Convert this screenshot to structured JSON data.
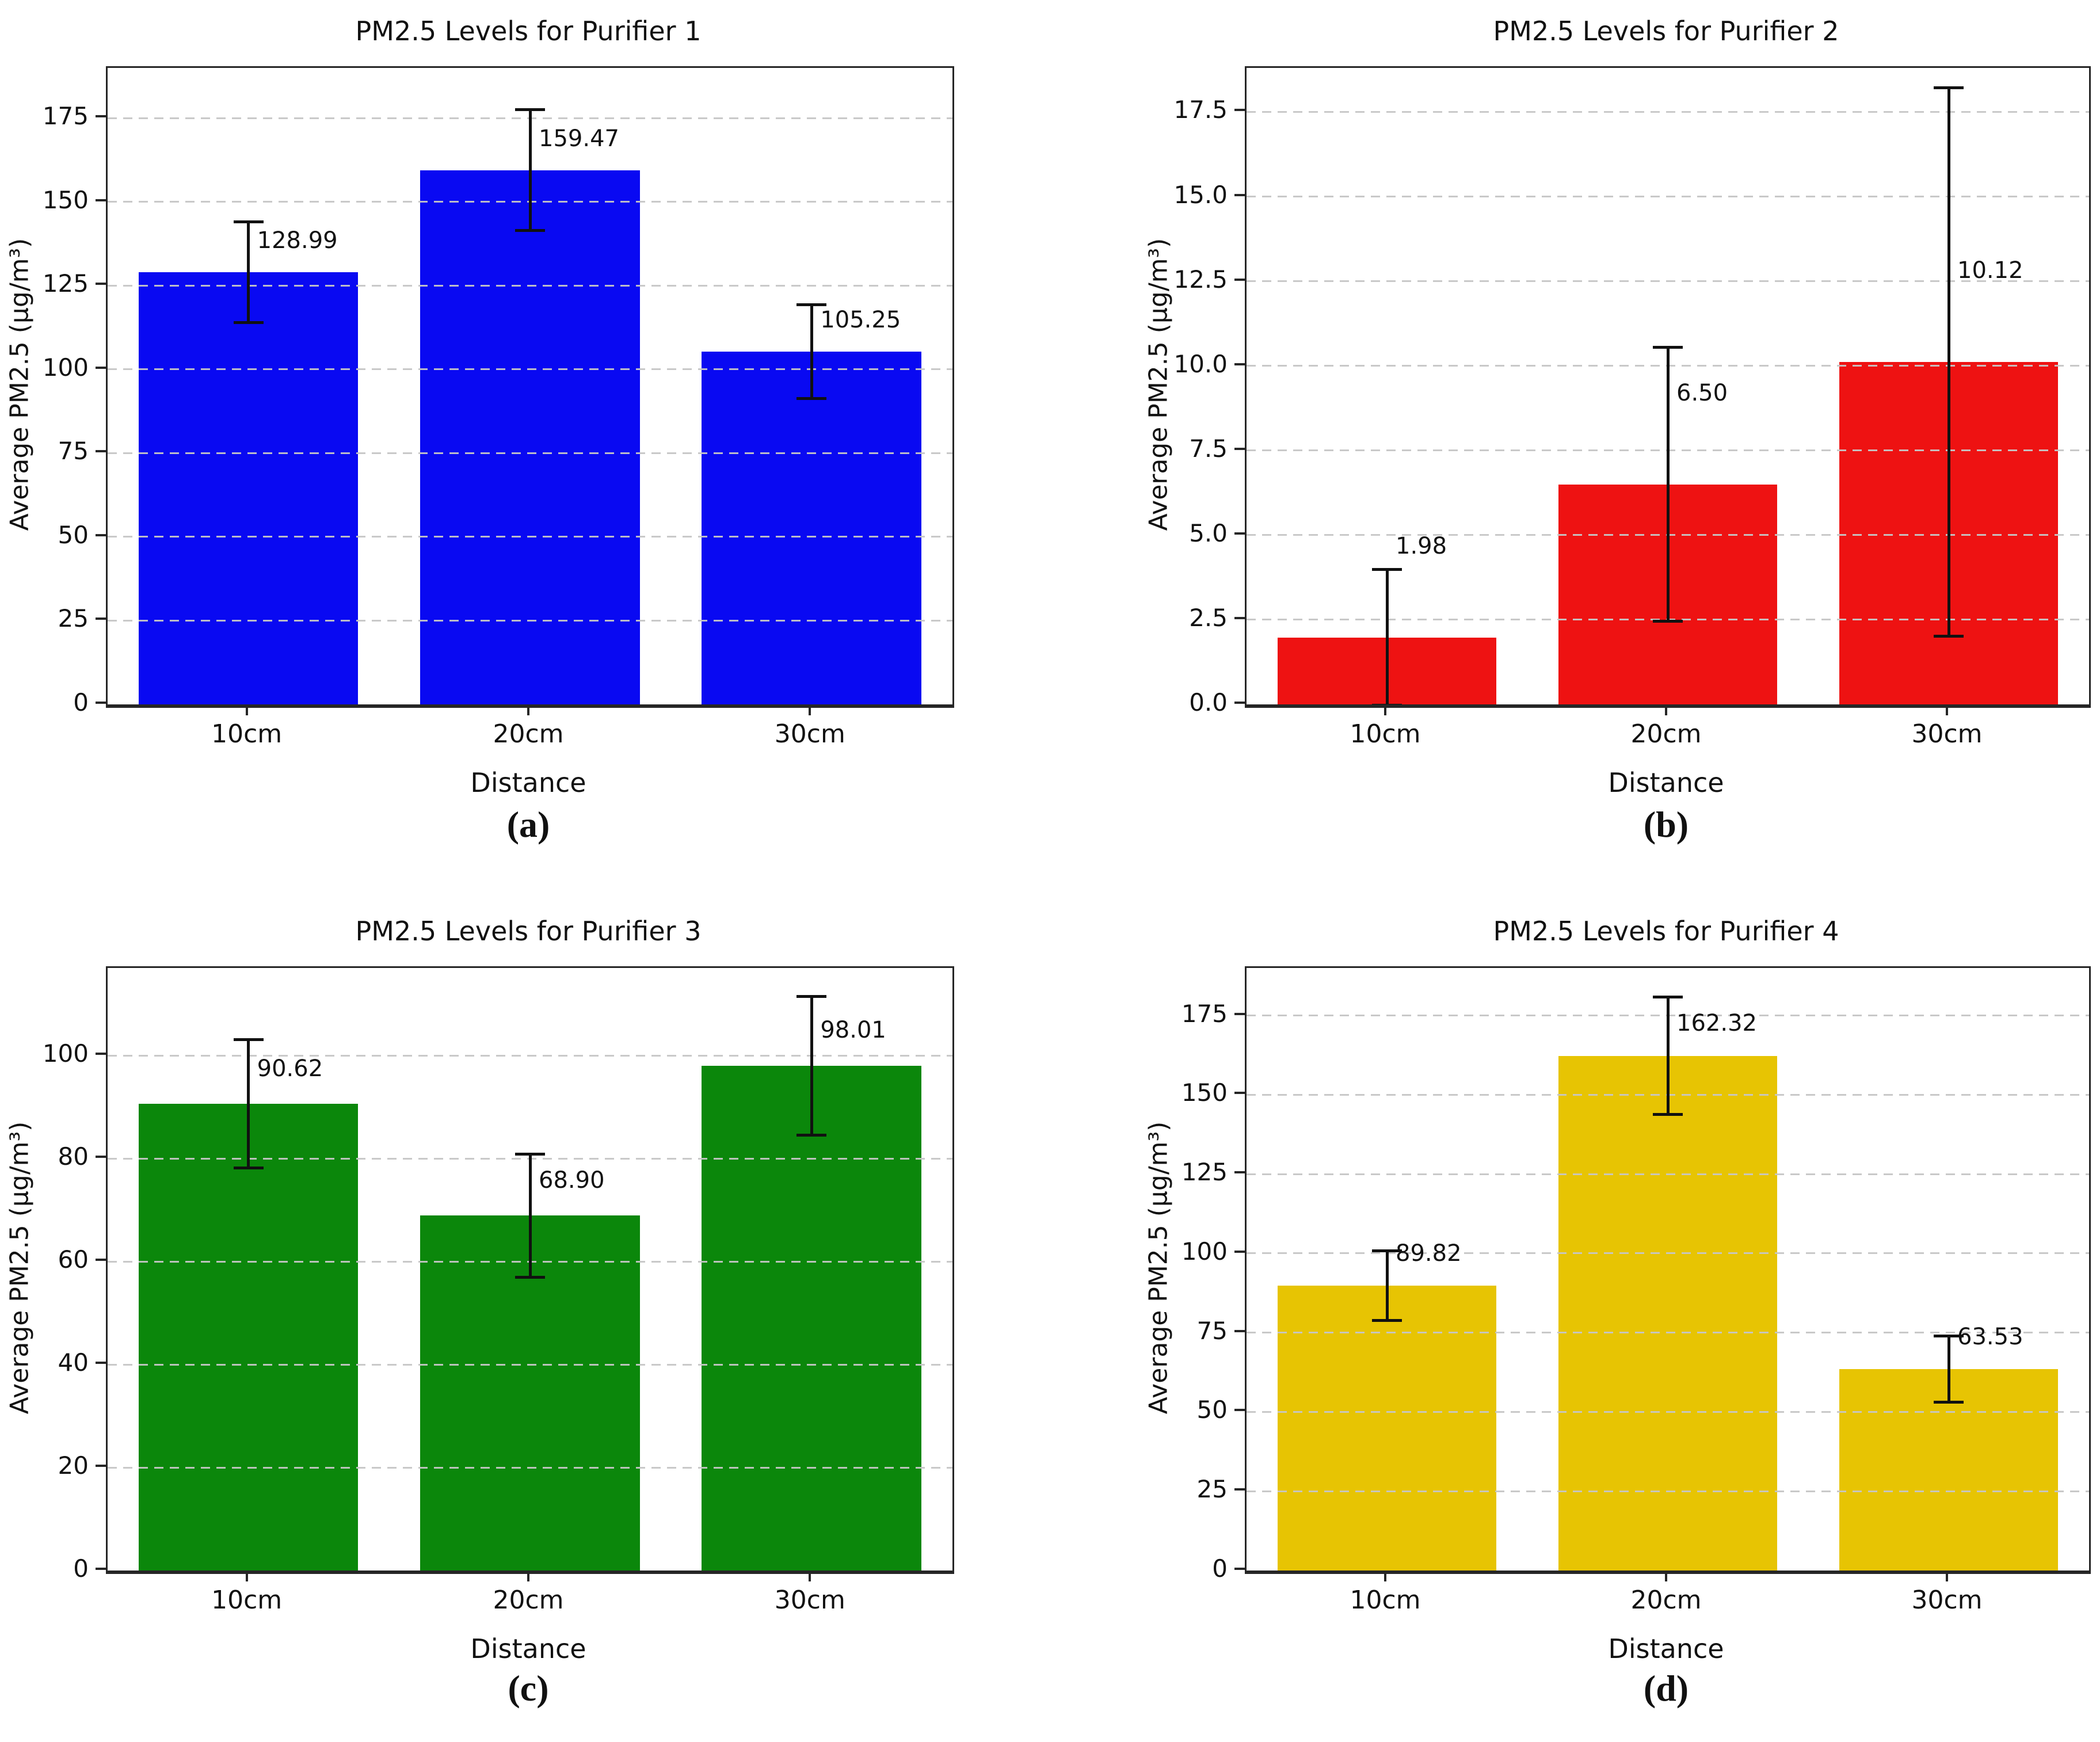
{
  "figure": {
    "background": "#ffffff",
    "grid_color": "#c6c6c6",
    "spine_color": "#262626"
  },
  "chart_data": [
    {
      "id": "a",
      "type": "bar",
      "title": "PM2.5 Levels for Purifier 1",
      "caption": "(a)",
      "xlabel": "Distance",
      "ylabel": "Average PM2.5 (µg/m³)",
      "categories": [
        "10cm",
        "20cm",
        "30cm"
      ],
      "values": [
        128.99,
        159.47,
        105.25
      ],
      "errors": [
        15.0,
        18.0,
        14.0
      ],
      "value_labels": [
        "128.99",
        "159.47",
        "105.25"
      ],
      "bar_color": "#0909f2",
      "ylim": [
        0,
        190
      ],
      "yticks": [
        0,
        25,
        50,
        75,
        100,
        125,
        150,
        175
      ],
      "ytick_labels": [
        "0",
        "25",
        "50",
        "75",
        "100",
        "125",
        "150",
        "175"
      ],
      "label_offset": 5.5,
      "grid": "dashed-horizontal",
      "legend": "none"
    },
    {
      "id": "b",
      "type": "bar",
      "title": "PM2.5 Levels for Purifier 2",
      "caption": "(b)",
      "xlabel": "Distance",
      "ylabel": "Average PM2.5 (µg/m³)",
      "categories": [
        "10cm",
        "20cm",
        "30cm"
      ],
      "values": [
        1.98,
        6.5,
        10.12
      ],
      "errors": [
        2.0,
        4.05,
        8.1
      ],
      "value_labels": [
        "1.98",
        "6.50",
        "10.12"
      ],
      "bar_color": "#ee1212",
      "ylim": [
        0,
        18.8
      ],
      "yticks": [
        0,
        2.5,
        5.0,
        7.5,
        10.0,
        12.5,
        15.0,
        17.5
      ],
      "ytick_labels": [
        "0.0",
        "2.5",
        "5.0",
        "7.5",
        "10.0",
        "12.5",
        "15.0",
        "17.5"
      ],
      "label_offset": 2.3,
      "grid": "dashed-horizontal",
      "legend": "none"
    },
    {
      "id": "c",
      "type": "bar",
      "title": "PM2.5 Levels for Purifier 3",
      "caption": "(c)",
      "xlabel": "Distance",
      "ylabel": "Average PM2.5 (µg/m³)",
      "categories": [
        "10cm",
        "20cm",
        "30cm"
      ],
      "values": [
        90.62,
        68.9,
        98.01
      ],
      "errors": [
        12.5,
        12.0,
        13.5
      ],
      "value_labels": [
        "90.62",
        "68.90",
        "98.01"
      ],
      "bar_color": "#0b870b",
      "ylim": [
        0,
        117
      ],
      "yticks": [
        0,
        20,
        40,
        60,
        80,
        100
      ],
      "ytick_labels": [
        "0",
        "20",
        "40",
        "60",
        "80",
        "100"
      ],
      "label_offset": 4.3,
      "grid": "dashed-horizontal",
      "legend": "none"
    },
    {
      "id": "d",
      "type": "bar",
      "title": "PM2.5 Levels for Purifier 4",
      "caption": "(d)",
      "xlabel": "Distance",
      "ylabel": "Average PM2.5 (µg/m³)",
      "categories": [
        "10cm",
        "20cm",
        "30cm"
      ],
      "values": [
        89.82,
        162.32,
        63.53
      ],
      "errors": [
        11.0,
        18.5,
        10.5
      ],
      "value_labels": [
        "89.82",
        "162.32",
        "63.53"
      ],
      "bar_color": "#e7c403",
      "ylim": [
        0,
        190
      ],
      "yticks": [
        0,
        25,
        50,
        75,
        100,
        125,
        150,
        175
      ],
      "ytick_labels": [
        "0",
        "25",
        "50",
        "75",
        "100",
        "125",
        "150",
        "175"
      ],
      "label_offset": 6.0,
      "grid": "dashed-horizontal",
      "legend": "none"
    }
  ]
}
